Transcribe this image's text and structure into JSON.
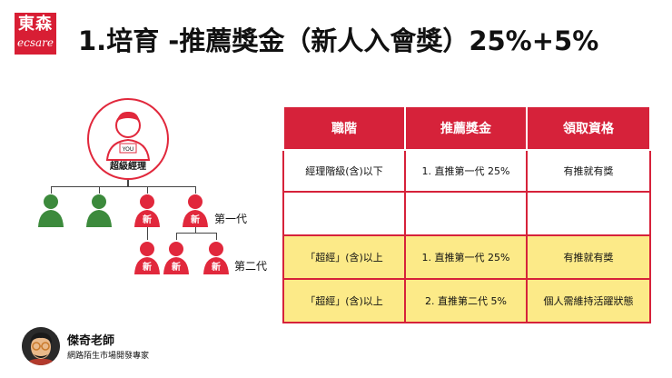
{
  "logo": {
    "cn": "東森",
    "en": "ecsare"
  },
  "title": "1.培育  -推薦獎金（新人入會獎）25%+5%",
  "tree": {
    "you_badge": "YOU",
    "you_label": "超級經理",
    "new_tag": "新",
    "gen1_label": "第一代",
    "gen2_label": "第二代",
    "colors": {
      "red": "#e1283c",
      "green": "#3c8a3c"
    }
  },
  "table": {
    "headers": [
      "職階",
      "推薦獎金",
      "領取資格"
    ],
    "rows": [
      {
        "rank": "經理階級(含)以下",
        "bonus": "1. 直推第一代  25%",
        "qualification": "有推就有獎"
      },
      {
        "rank": "",
        "bonus": "",
        "qualification": ""
      },
      {
        "rank": "「超經」(含)以上",
        "bonus": "1. 直推第一代  25%",
        "qualification": "有推就有獎"
      },
      {
        "rank": "「超經」(含)以上",
        "bonus": "2. 直推第二代  5%",
        "qualification": "個人需維持活躍狀態"
      }
    ],
    "colors": {
      "header": "#d6223a",
      "highlight": "#fcea88"
    }
  },
  "presenter": {
    "name": "傑奇老師",
    "title": "網路陌生市場開發專家"
  }
}
